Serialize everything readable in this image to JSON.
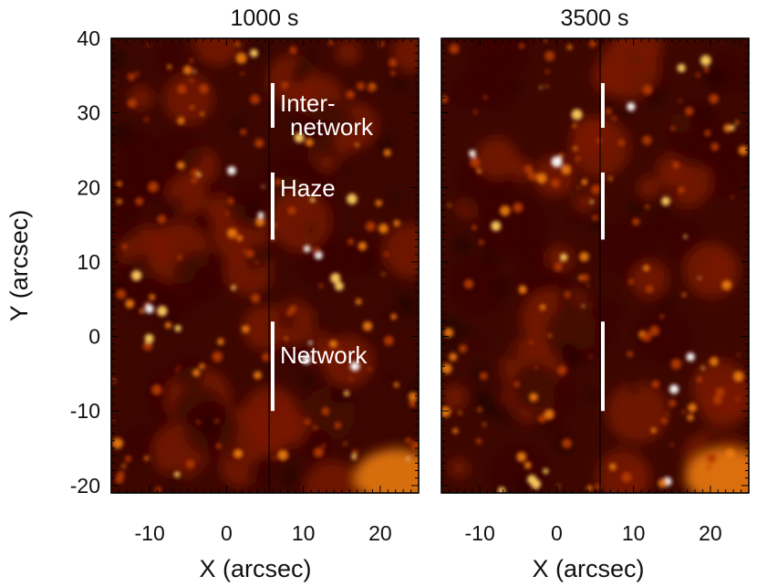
{
  "figure": {
    "panels": [
      {
        "title": "1000 s"
      },
      {
        "title": "3500 s"
      }
    ],
    "x_axis": {
      "label": "X (arcsec)",
      "range": [
        -15,
        25
      ],
      "ticks": [
        -10,
        0,
        10,
        20
      ]
    },
    "y_axis": {
      "label": "Y (arcsec)",
      "range": [
        -21,
        40
      ],
      "ticks": [
        40,
        30,
        20,
        10,
        0,
        -10,
        -20
      ]
    },
    "regions": [
      {
        "label_line1": "Inter-",
        "label_line2": "network",
        "y_range": [
          28,
          34
        ]
      },
      {
        "label": "Haze",
        "y_range": [
          13,
          22
        ]
      },
      {
        "label": "Network",
        "y_range": [
          -10,
          2
        ]
      }
    ],
    "slit_x": 6,
    "colormap": [
      "#000000",
      "#3a0600",
      "#7a1800",
      "#b23a00",
      "#e87a10",
      "#ffd060",
      "#ffffff"
    ]
  }
}
